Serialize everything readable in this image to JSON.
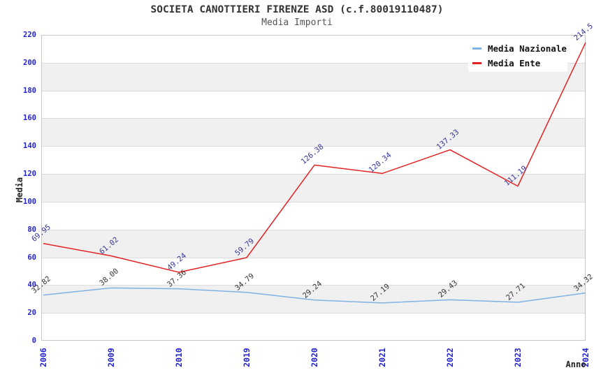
{
  "chart_data": {
    "type": "line",
    "title": "SOCIETA CANOTTIERI FIRENZE ASD (c.f.80019110487)",
    "subtitle": "Media Importi",
    "x": [
      "2006",
      "2009",
      "2010",
      "2019",
      "2020",
      "2021",
      "2022",
      "2023",
      "2024"
    ],
    "xlabel": "Anno",
    "ylabel": "Media",
    "ylim": [
      0,
      220
    ],
    "ytick_step": 20,
    "grid": true,
    "band_color": "#f0f0f0",
    "gridline_color": "#dcdcdc",
    "tick_label_color": "#2323cf",
    "legend_position": "top-right",
    "series": [
      {
        "name": "Media Nazionale",
        "color": "#7fb2e5",
        "label_color": "#333333",
        "values": [
          32.82,
          38.0,
          37.36,
          34.79,
          29.24,
          27.19,
          29.43,
          27.71,
          34.32
        ],
        "labels": [
          "32.82",
          "38.00",
          "37.36",
          "34.79",
          "29.24",
          "27.19",
          "29.43",
          "27.71",
          "34.32"
        ]
      },
      {
        "name": "Media Ente",
        "color": "#e32222",
        "label_color": "#333399",
        "values": [
          69.95,
          61.02,
          49.24,
          59.79,
          126.38,
          120.34,
          137.33,
          111.19,
          214.5
        ],
        "labels": [
          "69.95",
          "61.02",
          "49.24",
          "59.79",
          "126.38",
          "120.34",
          "137.33",
          "111.19",
          "214.5"
        ]
      }
    ]
  }
}
